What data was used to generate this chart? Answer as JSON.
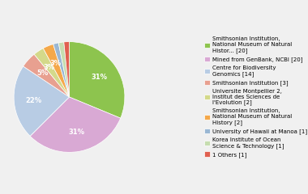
{
  "labels": [
    "Smithsonian Institution,\nNational Museum of Natural\nHistor... [20]",
    "Mined from GenBank, NCBI [20]",
    "Centre for Biodiversity\nGenomics [14]",
    "Smithsonian Institution [3]",
    "Universite Montpellier 2,\nInstitut des Sciences de\nl'Evolution [2]",
    "Smithsonian Institution,\nNational Museum of Natural\nHistory [2]",
    "University of Hawaii at Manoa [1]",
    "Korea Institute of Ocean\nScience & Technology [1]",
    "1 Others [1]"
  ],
  "values": [
    20,
    20,
    14,
    3,
    2,
    2,
    1,
    1,
    1
  ],
  "colors": [
    "#8dc44e",
    "#d9a9d4",
    "#b8cce4",
    "#e8a090",
    "#d4d98a",
    "#f4a84a",
    "#9ab7d3",
    "#c6ddb0",
    "#e06050"
  ],
  "legend_labels": [
    "Smithsonian Institution,\nNational Museum of Natural\nHistor... [20]",
    "Mined from GenBank, NCBI [20]",
    "Centre for Biodiversity\nGenomics [14]",
    "Smithsonian Institution [3]",
    "Universite Montpellier 2,\nInstitut des Sciences de\nl'Evolution [2]",
    "Smithsonian Institution,\nNational Museum of Natural\nHistory [2]",
    "University of Hawaii at Manoa [1]",
    "Korea Institute of Ocean\nScience & Technology [1]",
    "1 Others [1]"
  ],
  "background_color": "#f0f0f0"
}
